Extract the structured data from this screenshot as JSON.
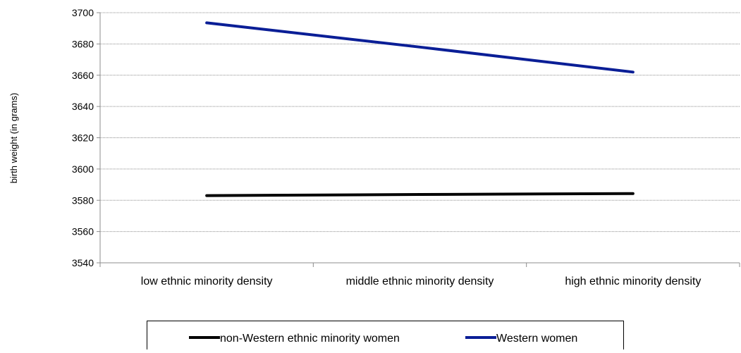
{
  "chart_data": {
    "type": "line",
    "title": "",
    "xlabel": "",
    "ylabel": "birth weight (in grams)",
    "categories": [
      "low ethnic minority density",
      "middle ethnic minority density",
      "high ethnic minority density"
    ],
    "series": [
      {
        "name": "non-Western ethnic minority women",
        "color": "#000000",
        "values": [
          3583,
          3583.7,
          3584.3
        ]
      },
      {
        "name": "Western women",
        "color": "#0a1e96",
        "values": [
          3693.5,
          3678,
          3662
        ]
      }
    ],
    "ylim": [
      3540,
      3700
    ],
    "yticks": [
      3540,
      3560,
      3580,
      3600,
      3620,
      3640,
      3660,
      3680,
      3700
    ],
    "grid": true,
    "legend_position": "bottom"
  }
}
